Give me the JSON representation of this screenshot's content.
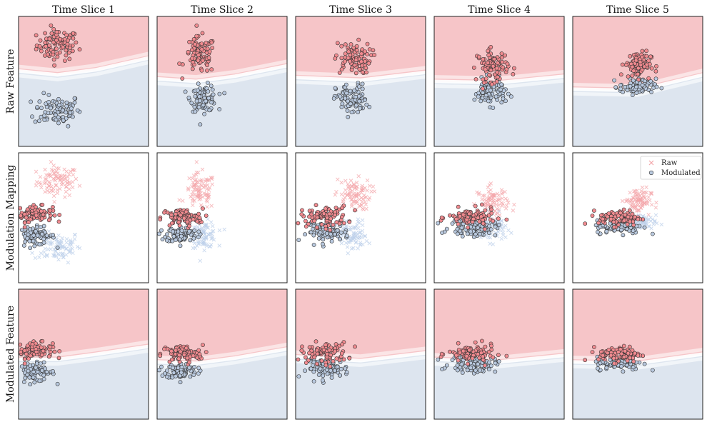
{
  "chart_data": {
    "type": "scatter",
    "columns": [
      "Time Slice 1",
      "Time Slice 2",
      "Time Slice 3",
      "Time Slice 4",
      "Time Slice 5"
    ],
    "rows": [
      "Raw Feature",
      "Modulation Mapping",
      "Modulated Feature"
    ],
    "legend": {
      "raw_label": "Raw",
      "modulated_label": "Modulated",
      "placement": "top-right of Modulation Mapping, Time Slice 5"
    },
    "colors": {
      "red_region": "#f6c5c8",
      "blue_region": "#dde5ef",
      "boundary_band": "#ffffff",
      "red_point": "#f08a8f",
      "blue_point": "#b8c8de",
      "red_raw_x": "#f4a7ab",
      "blue_raw_x": "#bdd0ea",
      "edge": "#333333"
    },
    "xlim": [
      0,
      10
    ],
    "ylim": [
      0,
      10
    ],
    "points_per_class": 90,
    "raw_clusters": [
      {
        "red": {
          "cx": 3.0,
          "cy": 7.8,
          "sx": 0.8,
          "sy": 0.6
        },
        "blue": {
          "cx": 3.0,
          "cy": 2.8,
          "sx": 0.9,
          "sy": 0.6
        }
      },
      {
        "red": {
          "cx": 3.3,
          "cy": 7.0,
          "sx": 0.6,
          "sy": 0.7
        },
        "blue": {
          "cx": 3.6,
          "cy": 3.7,
          "sx": 0.5,
          "sy": 0.5
        }
      },
      {
        "red": {
          "cx": 4.4,
          "cy": 6.8,
          "sx": 0.7,
          "sy": 0.6
        },
        "blue": {
          "cx": 4.3,
          "cy": 3.6,
          "sx": 0.6,
          "sy": 0.6
        }
      },
      {
        "red": {
          "cx": 4.5,
          "cy": 6.2,
          "sx": 0.6,
          "sy": 0.6
        },
        "blue": {
          "cx": 4.3,
          "cy": 4.2,
          "sx": 0.6,
          "sy": 0.5
        }
      },
      {
        "red": {
          "cx": 5.0,
          "cy": 6.3,
          "sx": 0.5,
          "sy": 0.5
        },
        "blue": {
          "cx": 5.0,
          "cy": 4.6,
          "sx": 0.7,
          "sy": 0.3
        }
      }
    ],
    "modulated_clusters": [
      {
        "red": {
          "cx": 1.2,
          "cy": 5.3,
          "sx": 0.7,
          "sy": 0.3
        },
        "blue": {
          "cx": 1.2,
          "cy": 3.6,
          "sx": 0.8,
          "sy": 0.35
        }
      },
      {
        "red": {
          "cx": 1.9,
          "cy": 5.0,
          "sx": 0.8,
          "sy": 0.35
        },
        "blue": {
          "cx": 1.9,
          "cy": 3.7,
          "sx": 0.6,
          "sy": 0.3
        }
      },
      {
        "red": {
          "cx": 2.2,
          "cy": 5.1,
          "sx": 0.9,
          "sy": 0.4
        },
        "blue": {
          "cx": 2.5,
          "cy": 3.9,
          "sx": 0.8,
          "sy": 0.35
        }
      },
      {
        "red": {
          "cx": 2.9,
          "cy": 5.0,
          "sx": 0.9,
          "sy": 0.35
        },
        "blue": {
          "cx": 3.0,
          "cy": 4.2,
          "sx": 0.9,
          "sy": 0.3
        }
      },
      {
        "red": {
          "cx": 3.6,
          "cy": 5.0,
          "sx": 0.8,
          "sy": 0.3
        },
        "blue": {
          "cx": 3.6,
          "cy": 4.3,
          "sx": 0.9,
          "sy": 0.25
        }
      }
    ],
    "decision_boundaries": [
      [
        [
          0,
          5.8
        ],
        [
          3,
          5.5
        ],
        [
          6,
          5.9
        ],
        [
          10,
          6.8
        ]
      ],
      [
        [
          0,
          5.2
        ],
        [
          3,
          5.0
        ],
        [
          6,
          5.4
        ],
        [
          10,
          6.2
        ]
      ],
      [
        [
          0,
          5.3
        ],
        [
          5,
          5.1
        ],
        [
          10,
          5.7
        ]
      ],
      [
        [
          0,
          5.0
        ],
        [
          5,
          4.9
        ],
        [
          10,
          5.4
        ]
      ],
      [
        [
          0,
          4.4
        ],
        [
          5,
          4.3
        ],
        [
          10,
          5.5
        ]
      ]
    ],
    "modulated_boundaries": [
      [
        [
          0,
          4.6
        ],
        [
          3,
          4.6
        ],
        [
          6,
          5.0
        ],
        [
          10,
          5.6
        ]
      ],
      [
        [
          0,
          4.4
        ],
        [
          3,
          4.3
        ],
        [
          6,
          4.7
        ],
        [
          10,
          5.4
        ]
      ],
      [
        [
          0,
          4.8
        ],
        [
          5,
          4.5
        ],
        [
          10,
          5.1
        ]
      ],
      [
        [
          0,
          4.6
        ],
        [
          5,
          4.4
        ],
        [
          10,
          4.9
        ]
      ],
      [
        [
          0,
          4.4
        ],
        [
          5,
          4.3
        ],
        [
          10,
          5.0
        ]
      ]
    ]
  }
}
